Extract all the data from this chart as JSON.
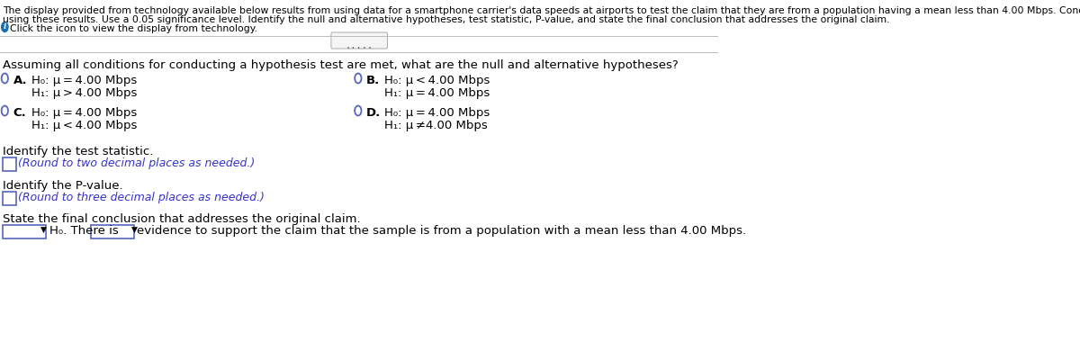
{
  "bg_color": "#ffffff",
  "header_line1": "The display provided from technology available below results from using data for a smartphone carrier's data speeds at airports to test the claim that they are from a population having a mean less than 4.00 Mbps. Conduct the hypothesis test",
  "header_line2": "using these results. Use a 0.05 significance level. Identify the null and alternative hypotheses, test statistic, P-value, and state the final conclusion that addresses the original claim.",
  "icon_text": "Click the icon to view the display from technology.",
  "divider_dots": ".....",
  "question_text": "Assuming all conditions for conducting a hypothesis test are met, what are the null and alternative hypotheses?",
  "options": [
    {
      "label": "A.",
      "h0": "H₀: μ = 4.00 Mbps",
      "h1": "H₁: μ > 4.00 Mbps",
      "col": 0
    },
    {
      "label": "B.",
      "h0": "H₀: μ < 4.00 Mbps",
      "h1": "H₁: μ = 4.00 Mbps",
      "col": 1
    },
    {
      "label": "C.",
      "h0": "H₀: μ = 4.00 Mbps",
      "h1": "H₁: μ < 4.00 Mbps",
      "col": 0
    },
    {
      "label": "D.",
      "h0": "H₀: μ = 4.00 Mbps",
      "h1": "H₁: μ ≠4.00 Mbps",
      "col": 1
    }
  ],
  "test_stat_label": "Identify the test statistic.",
  "test_stat_hint": "(Round to two decimal places as needed.)",
  "pvalue_label": "Identify the P-value.",
  "pvalue_hint": "(Round to three decimal places as needed.)",
  "conclusion_label": "State the final conclusion that addresses the original claim.",
  "conclusion_h0": "H₀. There is",
  "conclusion_text": "evidence to support the claim that the sample is from a population with a mean less than 4.00 Mbps.",
  "text_color": "#000000",
  "hint_color": "#3333cc",
  "circle_color": "#5566bb",
  "box_border_color": "#5566bb",
  "dropdown_border": "#5566bb",
  "header_fontsize": 7.8,
  "body_fontsize": 9.5,
  "small_fontsize": 9.0,
  "icon_color": "#1a6faf"
}
